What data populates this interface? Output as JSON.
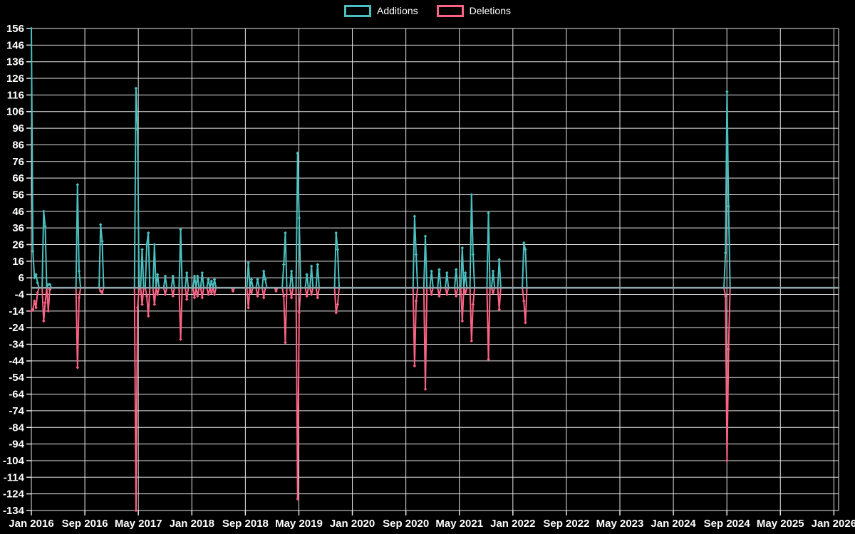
{
  "legend": {
    "additions_label": "Additions",
    "deletions_label": "Deletions"
  },
  "colors": {
    "background": "#000000",
    "grid": "#e6e6e6",
    "tick_text": "#ffffff",
    "additions": "#4bc0c0",
    "deletions": "#ff6384",
    "zero_baseline": "#8fa6ad"
  },
  "chart_data": {
    "type": "line",
    "title": "",
    "legend_entries": [
      "Additions",
      "Deletions"
    ],
    "legend_position": "top",
    "grid": true,
    "x_axis": {
      "unit": "weeks (commit activity, weekly buckets starting Jan 2016)",
      "tick_labels": [
        "Jan 2016",
        "Sep 2016",
        "May 2017",
        "Jan 2018",
        "Sep 2018",
        "May 2019",
        "Jan 2020",
        "Sep 2020",
        "May 2021",
        "Jan 2022",
        "Sep 2022",
        "May 2023",
        "Jan 2024",
        "Sep 2024",
        "May 2025",
        "Jan 2026"
      ],
      "tick_interval_months": 8,
      "weeks_per_month": 4.34524,
      "total_weeks": 524.5
    },
    "y_axis": {
      "min": -134,
      "max": 156,
      "tick_step": 10,
      "tick_labels": [
        156,
        146,
        136,
        126,
        116,
        106,
        96,
        86,
        76,
        66,
        56,
        46,
        36,
        26,
        16,
        6,
        -4,
        -14,
        -24,
        -34,
        -44,
        -54,
        -64,
        -74,
        -84,
        -94,
        -104,
        -114,
        -124,
        -134
      ]
    },
    "series": [
      {
        "name": "Additions",
        "color": "#4bc0c0",
        "default_value": 0,
        "points_nonzero": [
          [
            0,
            156
          ],
          [
            1,
            22
          ],
          [
            2,
            6
          ],
          [
            3,
            8
          ],
          [
            4,
            3
          ],
          [
            8,
            46
          ],
          [
            9,
            37
          ],
          [
            11,
            2
          ],
          [
            12,
            2
          ],
          [
            30,
            62
          ],
          [
            31,
            10
          ],
          [
            45,
            38
          ],
          [
            46,
            28
          ],
          [
            68,
            120
          ],
          [
            69,
            95
          ],
          [
            72,
            23
          ],
          [
            75,
            26
          ],
          [
            76,
            33
          ],
          [
            80,
            26
          ],
          [
            82,
            8
          ],
          [
            87,
            7
          ],
          [
            92,
            7
          ],
          [
            97,
            35
          ],
          [
            101,
            9
          ],
          [
            106,
            7
          ],
          [
            108,
            7
          ],
          [
            111,
            9
          ],
          [
            115,
            5
          ],
          [
            117,
            4
          ],
          [
            119,
            5
          ],
          [
            141,
            15
          ],
          [
            143,
            5
          ],
          [
            147,
            5
          ],
          [
            151,
            10
          ],
          [
            152,
            5
          ],
          [
            164,
            14
          ],
          [
            165,
            33
          ],
          [
            169,
            10
          ],
          [
            173,
            81
          ],
          [
            174,
            42
          ],
          [
            179,
            8
          ],
          [
            182,
            13
          ],
          [
            186,
            14
          ],
          [
            198,
            33
          ],
          [
            199,
            23
          ],
          [
            249,
            43
          ],
          [
            250,
            20
          ],
          [
            256,
            31
          ],
          [
            260,
            10
          ],
          [
            265,
            11
          ],
          [
            270,
            9
          ],
          [
            276,
            11
          ],
          [
            280,
            24
          ],
          [
            282,
            9
          ],
          [
            286,
            56
          ],
          [
            287,
            20
          ],
          [
            297,
            45
          ],
          [
            300,
            10
          ],
          [
            304,
            17
          ],
          [
            320,
            27
          ],
          [
            321,
            23
          ],
          [
            451,
            21
          ],
          [
            452,
            118
          ],
          [
            453,
            49
          ]
        ]
      },
      {
        "name": "Deletions",
        "color": "#ff6384",
        "default_value": 0,
        "points_nonzero": [
          [
            0,
            -14
          ],
          [
            1,
            -13
          ],
          [
            2,
            -8
          ],
          [
            3,
            -12
          ],
          [
            4,
            -3
          ],
          [
            8,
            -20
          ],
          [
            9,
            -9
          ],
          [
            11,
            -14
          ],
          [
            12,
            -1
          ],
          [
            30,
            -48
          ],
          [
            31,
            -6
          ],
          [
            45,
            -2
          ],
          [
            46,
            -3
          ],
          [
            68,
            -134
          ],
          [
            69,
            -12
          ],
          [
            72,
            -10
          ],
          [
            75,
            -5
          ],
          [
            76,
            -17
          ],
          [
            80,
            -10
          ],
          [
            82,
            -4
          ],
          [
            87,
            -4
          ],
          [
            92,
            -5
          ],
          [
            97,
            -31
          ],
          [
            101,
            -7
          ],
          [
            106,
            -6
          ],
          [
            108,
            -5
          ],
          [
            111,
            -6
          ],
          [
            115,
            -4
          ],
          [
            117,
            -3
          ],
          [
            119,
            -4
          ],
          [
            131,
            -2
          ],
          [
            141,
            -12
          ],
          [
            143,
            -3
          ],
          [
            147,
            -5
          ],
          [
            151,
            -6
          ],
          [
            159,
            -2
          ],
          [
            164,
            -5
          ],
          [
            165,
            -33
          ],
          [
            169,
            -6
          ],
          [
            173,
            -127
          ],
          [
            174,
            -15
          ],
          [
            179,
            -5
          ],
          [
            182,
            -4
          ],
          [
            186,
            -6
          ],
          [
            198,
            -15
          ],
          [
            199,
            -10
          ],
          [
            249,
            -47
          ],
          [
            250,
            -8
          ],
          [
            256,
            -61
          ],
          [
            260,
            -4
          ],
          [
            265,
            -5
          ],
          [
            270,
            -4
          ],
          [
            276,
            -5
          ],
          [
            280,
            -20
          ],
          [
            282,
            -3
          ],
          [
            286,
            -32
          ],
          [
            287,
            -10
          ],
          [
            297,
            -43
          ],
          [
            300,
            -3
          ],
          [
            304,
            -13
          ],
          [
            320,
            -8
          ],
          [
            321,
            -21
          ],
          [
            451,
            -5
          ],
          [
            452,
            -104
          ],
          [
            453,
            -37
          ]
        ]
      }
    ]
  }
}
